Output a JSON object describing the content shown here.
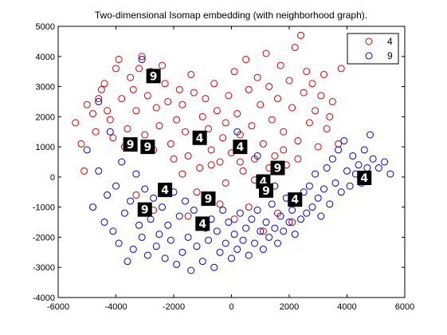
{
  "chart_data": {
    "type": "scatter",
    "title": "Two-dimensional Isomap embedding (with neighborhood graph).",
    "xlabel": "",
    "ylabel": "",
    "xlim": [
      -6000,
      6000
    ],
    "ylim": [
      -4000,
      5000
    ],
    "xticks": [
      -6000,
      -4000,
      -2000,
      0,
      2000,
      4000,
      6000
    ],
    "yticks": [
      -4000,
      -3000,
      -2000,
      -1000,
      0,
      1000,
      2000,
      3000,
      4000,
      5000
    ],
    "xtick_labels": [
      "-6000",
      "-4000",
      "-2000",
      "0",
      "2000",
      "4000",
      "6000"
    ],
    "ytick_labels": [
      "-4000",
      "-3000",
      "-2000",
      "-1000",
      "0",
      "1000",
      "2000",
      "3000",
      "4000",
      "5000"
    ],
    "grid": false,
    "legend_placement": "top-right",
    "marker": "open-circle",
    "series": [
      {
        "name": "4",
        "color": "#d40000",
        "points": [
          [
            -5400,
            1800
          ],
          [
            -5200,
            1100
          ],
          [
            -5100,
            200
          ],
          [
            -5000,
            2400
          ],
          [
            -4800,
            2100
          ],
          [
            -4700,
            1500
          ],
          [
            -4600,
            2600
          ],
          [
            -4500,
            2900
          ],
          [
            -4400,
            3100
          ],
          [
            -4300,
            2200
          ],
          [
            -4200,
            1900
          ],
          [
            -4100,
            1300
          ],
          [
            -4000,
            3600
          ],
          [
            -3900,
            3900
          ],
          [
            -3800,
            2600
          ],
          [
            -3700,
            1000
          ],
          [
            -3600,
            1600
          ],
          [
            -3500,
            3300
          ],
          [
            -3400,
            2900
          ],
          [
            -3300,
            2200
          ],
          [
            -3200,
            3600
          ],
          [
            -3100,
            4000
          ],
          [
            -3000,
            1400
          ],
          [
            -2900,
            2700
          ],
          [
            -2800,
            3500
          ],
          [
            -2700,
            900
          ],
          [
            -2600,
            2300
          ],
          [
            -2500,
            1700
          ],
          [
            -2400,
            3700
          ],
          [
            -2300,
            3100
          ],
          [
            -2200,
            2500
          ],
          [
            -2100,
            1100
          ],
          [
            -2000,
            600
          ],
          [
            -1900,
            1900
          ],
          [
            -1800,
            2900
          ],
          [
            -1700,
            2400
          ],
          [
            -1600,
            1500
          ],
          [
            -1500,
            700
          ],
          [
            -1400,
            3400
          ],
          [
            -1300,
            2800
          ],
          [
            -1200,
            1200
          ],
          [
            -1100,
            300
          ],
          [
            -1000,
            2000
          ],
          [
            -900,
            2600
          ],
          [
            -800,
            1600
          ],
          [
            -700,
            900
          ],
          [
            -600,
            3100
          ],
          [
            -500,
            2200
          ],
          [
            -400,
            500
          ],
          [
            -300,
            1300
          ],
          [
            -200,
            1800
          ],
          [
            -100,
            2700
          ],
          [
            0,
            800
          ],
          [
            100,
            3500
          ],
          [
            200,
            2100
          ],
          [
            300,
            1400
          ],
          [
            400,
            200
          ],
          [
            500,
            3900
          ],
          [
            600,
            2900
          ],
          [
            700,
            1700
          ],
          [
            800,
            600
          ],
          [
            900,
            3300
          ],
          [
            1000,
            2400
          ],
          [
            1100,
            1100
          ],
          [
            1200,
            4100
          ],
          [
            1300,
            3000
          ],
          [
            1400,
            1900
          ],
          [
            1500,
            700
          ],
          [
            1600,
            2600
          ],
          [
            1700,
            3700
          ],
          [
            1800,
            1500
          ],
          [
            1900,
            400
          ],
          [
            2000,
            3200
          ],
          [
            2100,
            2300
          ],
          [
            2200,
            4300
          ],
          [
            2300,
            1200
          ],
          [
            2400,
            4700
          ],
          [
            2500,
            2800
          ],
          [
            2600,
            3500
          ],
          [
            2700,
            1800
          ],
          [
            2800,
            3100
          ],
          [
            2900,
            2200
          ],
          [
            3000,
            1000
          ],
          [
            3100,
            2700
          ],
          [
            3200,
            3400
          ],
          [
            3300,
            1600
          ],
          [
            3400,
            2000
          ],
          [
            3500,
            2500
          ],
          [
            3700,
            1100
          ],
          [
            3800,
            3600
          ],
          [
            -2200,
            -300
          ],
          [
            -1700,
            100
          ],
          [
            -1200,
            -500
          ],
          [
            -700,
            400
          ],
          [
            -200,
            -200
          ],
          [
            300,
            500
          ],
          [
            800,
            -100
          ],
          [
            1300,
            300
          ],
          [
            1800,
            900
          ],
          [
            2300,
            600
          ],
          [
            -3300,
            -600
          ],
          [
            -2700,
            -1100
          ],
          [
            -1500,
            -1300
          ],
          [
            -900,
            -1700
          ],
          [
            -400,
            -900
          ],
          [
            100,
            -1400
          ],
          [
            600,
            -1000
          ],
          [
            1100,
            -1800
          ],
          [
            1600,
            -1200
          ],
          [
            2100,
            -1500
          ]
        ]
      },
      {
        "name": "9",
        "color": "#0000cc",
        "points": [
          [
            -5000,
            900
          ],
          [
            -4800,
            -1000
          ],
          [
            -4600,
            200
          ],
          [
            -4400,
            -1500
          ],
          [
            -4300,
            -600
          ],
          [
            -4200,
            1500
          ],
          [
            -4100,
            -1800
          ],
          [
            -4000,
            -300
          ],
          [
            -3900,
            -2200
          ],
          [
            -3800,
            500
          ],
          [
            -3700,
            -1200
          ],
          [
            -3600,
            -2800
          ],
          [
            -3500,
            -800
          ],
          [
            -3400,
            -2400
          ],
          [
            -3300,
            100
          ],
          [
            -3200,
            -1600
          ],
          [
            -3100,
            -2000
          ],
          [
            -3000,
            -400
          ],
          [
            -2900,
            -2600
          ],
          [
            -2800,
            -1400
          ],
          [
            -2700,
            -700
          ],
          [
            -2600,
            -2300
          ],
          [
            -2500,
            -1900
          ],
          [
            -2400,
            -1000
          ],
          [
            -2300,
            -2700
          ],
          [
            -2200,
            -1600
          ],
          [
            -2100,
            -2100
          ],
          [
            -2000,
            -500
          ],
          [
            -1900,
            -2900
          ],
          [
            -1800,
            -1300
          ],
          [
            -1700,
            -2500
          ],
          [
            -1600,
            -800
          ],
          [
            -1500,
            -2000
          ],
          [
            -1400,
            -3100
          ],
          [
            -1300,
            -1100
          ],
          [
            -1200,
            -2300
          ],
          [
            -1100,
            -1600
          ],
          [
            -1000,
            -2800
          ],
          [
            -900,
            -600
          ],
          [
            -800,
            -2100
          ],
          [
            -700,
            -1400
          ],
          [
            -600,
            -3000
          ],
          [
            -500,
            -1800
          ],
          [
            -400,
            -2500
          ],
          [
            -300,
            -1100
          ],
          [
            -200,
            -2200
          ],
          [
            -100,
            -1500
          ],
          [
            0,
            -2700
          ],
          [
            100,
            -1900
          ],
          [
            200,
            -2400
          ],
          [
            300,
            -1200
          ],
          [
            400,
            -2100
          ],
          [
            500,
            -1700
          ],
          [
            600,
            -2600
          ],
          [
            700,
            -1400
          ],
          [
            800,
            -2200
          ],
          [
            900,
            -1100
          ],
          [
            1000,
            -1800
          ],
          [
            1100,
            -2400
          ],
          [
            1200,
            -1500
          ],
          [
            1300,
            -2000
          ],
          [
            1400,
            -900
          ],
          [
            1500,
            -1700
          ],
          [
            1600,
            -2200
          ],
          [
            1700,
            -1300
          ],
          [
            1800,
            -1800
          ],
          [
            1900,
            -700
          ],
          [
            2000,
            -1500
          ],
          [
            2100,
            -1100
          ],
          [
            2200,
            -1900
          ],
          [
            2300,
            -800
          ],
          [
            2400,
            -1400
          ],
          [
            2500,
            -500
          ],
          [
            2600,
            -1200
          ],
          [
            2700,
            -300
          ],
          [
            2800,
            -1000
          ],
          [
            2900,
            100
          ],
          [
            3000,
            -700
          ],
          [
            3100,
            -1300
          ],
          [
            3200,
            -400
          ],
          [
            3300,
            300
          ],
          [
            3400,
            -900
          ],
          [
            3500,
            600
          ],
          [
            3600,
            -200
          ],
          [
            3700,
            900
          ],
          [
            3800,
            -500
          ],
          [
            3900,
            1200
          ],
          [
            4000,
            200
          ],
          [
            4100,
            -300
          ],
          [
            4200,
            700
          ],
          [
            4300,
            100
          ],
          [
            4400,
            400
          ],
          [
            4500,
            -200
          ],
          [
            4600,
            900
          ],
          [
            4700,
            300
          ],
          [
            4800,
            1400
          ],
          [
            4900,
            600
          ],
          [
            5100,
            300
          ],
          [
            5300,
            500
          ],
          [
            5500,
            100
          ],
          [
            -4600,
            2500
          ],
          [
            -3100,
            3900
          ],
          [
            200,
            1500
          ],
          [
            900,
            700
          ],
          [
            1500,
            -300
          ]
        ]
      }
    ],
    "annotations": [
      {
        "label": "9",
        "x": -2700,
        "y": 3350
      },
      {
        "label": "4",
        "x": -1100,
        "y": 1300
      },
      {
        "label": "4",
        "x": 300,
        "y": 1000
      },
      {
        "label": "9",
        "x": -3500,
        "y": 1080
      },
      {
        "label": "9",
        "x": -2900,
        "y": 1000
      },
      {
        "label": "9",
        "x": 1600,
        "y": 300
      },
      {
        "label": "4",
        "x": 1100,
        "y": -150
      },
      {
        "label": "9",
        "x": 1200,
        "y": -450
      },
      {
        "label": "4",
        "x": -2300,
        "y": -430
      },
      {
        "label": "9",
        "x": -800,
        "y": -720
      },
      {
        "label": "9",
        "x": -3000,
        "y": -1080
      },
      {
        "label": "4",
        "x": -1000,
        "y": -1550
      },
      {
        "label": "4",
        "x": 2200,
        "y": -750
      },
      {
        "label": "4",
        "x": 4600,
        "y": -30
      }
    ]
  }
}
